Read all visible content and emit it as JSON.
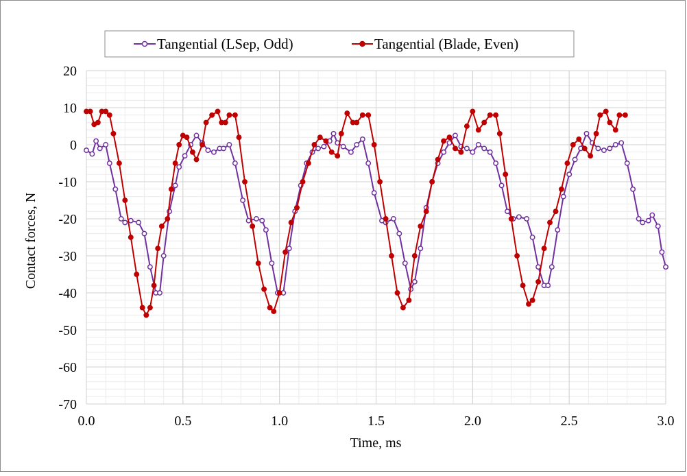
{
  "chart_data": {
    "type": "line",
    "title": "",
    "xlabel": "Time, ms",
    "ylabel": "Contact forces, N",
    "xlim": [
      0,
      3
    ],
    "ylim": [
      -70,
      20
    ],
    "x_ticks": [
      0,
      0.5,
      1,
      1.5,
      2,
      2.5,
      3
    ],
    "x_tick_labels": [
      "0.0",
      "0.5",
      "1.0",
      "1.5",
      "2.0",
      "2.5",
      "3.0"
    ],
    "y_ticks": [
      20,
      10,
      0,
      -10,
      -20,
      -30,
      -40,
      -50,
      -60,
      -70
    ],
    "y_tick_labels": [
      "20",
      "10",
      "0",
      "-10",
      "-20",
      "-30",
      "-40",
      "-50",
      "-60",
      "-70"
    ],
    "grid": true,
    "legend_position": "top",
    "series": [
      {
        "name": "Tangential (LSep, Odd)",
        "color": "#7030A0",
        "marker": "open-circle",
        "points": [
          [
            0.0,
            -1.5
          ],
          [
            0.03,
            -2.5
          ],
          [
            0.05,
            1.0
          ],
          [
            0.07,
            -1.0
          ],
          [
            0.1,
            0.0
          ],
          [
            0.12,
            -5
          ],
          [
            0.15,
            -12
          ],
          [
            0.18,
            -20
          ],
          [
            0.2,
            -21
          ],
          [
            0.23,
            -20.5
          ],
          [
            0.27,
            -21
          ],
          [
            0.3,
            -24
          ],
          [
            0.33,
            -33
          ],
          [
            0.36,
            -40
          ],
          [
            0.38,
            -40
          ],
          [
            0.4,
            -30
          ],
          [
            0.43,
            -18
          ],
          [
            0.46,
            -11
          ],
          [
            0.48,
            -6
          ],
          [
            0.51,
            -3
          ],
          [
            0.54,
            0
          ],
          [
            0.57,
            2.5
          ],
          [
            0.6,
            0.5
          ],
          [
            0.63,
            -1.5
          ],
          [
            0.66,
            -2
          ],
          [
            0.69,
            -1
          ],
          [
            0.71,
            -1
          ],
          [
            0.74,
            0
          ],
          [
            0.77,
            -5
          ],
          [
            0.81,
            -15
          ],
          [
            0.84,
            -20.5
          ],
          [
            0.88,
            -20
          ],
          [
            0.91,
            -20.5
          ],
          [
            0.93,
            -23
          ],
          [
            0.96,
            -32
          ],
          [
            0.99,
            -40
          ],
          [
            1.02,
            -40
          ],
          [
            1.05,
            -28
          ],
          [
            1.08,
            -18
          ],
          [
            1.11,
            -11
          ],
          [
            1.14,
            -5
          ],
          [
            1.17,
            -2
          ],
          [
            1.2,
            -1
          ],
          [
            1.23,
            -0.5
          ],
          [
            1.26,
            1
          ],
          [
            1.28,
            3
          ],
          [
            1.3,
            0.5
          ],
          [
            1.33,
            -0.5
          ],
          [
            1.37,
            -2
          ],
          [
            1.4,
            0
          ],
          [
            1.43,
            1.5
          ],
          [
            1.46,
            -5
          ],
          [
            1.49,
            -13
          ],
          [
            1.53,
            -20.5
          ],
          [
            1.55,
            -21
          ],
          [
            1.59,
            -20
          ],
          [
            1.62,
            -24
          ],
          [
            1.65,
            -32
          ],
          [
            1.68,
            -39
          ],
          [
            1.7,
            -37
          ],
          [
            1.73,
            -28
          ],
          [
            1.76,
            -17
          ],
          [
            1.79,
            -10
          ],
          [
            1.82,
            -5
          ],
          [
            1.85,
            -2
          ],
          [
            1.88,
            0.5
          ],
          [
            1.91,
            2.5
          ],
          [
            1.94,
            -0.5
          ],
          [
            1.97,
            -1
          ],
          [
            2.0,
            -2
          ],
          [
            2.03,
            0
          ],
          [
            2.06,
            -1
          ],
          [
            2.09,
            -2
          ],
          [
            2.12,
            -5
          ],
          [
            2.15,
            -11
          ],
          [
            2.18,
            -18
          ],
          [
            2.21,
            -20
          ],
          [
            2.24,
            -19.5
          ],
          [
            2.28,
            -20
          ],
          [
            2.31,
            -25
          ],
          [
            2.34,
            -33
          ],
          [
            2.37,
            -38
          ],
          [
            2.39,
            -38
          ],
          [
            2.41,
            -33
          ],
          [
            2.44,
            -23
          ],
          [
            2.47,
            -14
          ],
          [
            2.5,
            -8
          ],
          [
            2.53,
            -4
          ],
          [
            2.56,
            -1
          ],
          [
            2.59,
            3
          ],
          [
            2.62,
            0.5
          ],
          [
            2.65,
            -1
          ],
          [
            2.68,
            -1.5
          ],
          [
            2.71,
            -1
          ],
          [
            2.74,
            0
          ],
          [
            2.77,
            0.5
          ],
          [
            2.8,
            -5
          ],
          [
            2.83,
            -12
          ],
          [
            2.86,
            -20
          ],
          [
            2.88,
            -21
          ],
          [
            2.91,
            -20.5
          ],
          [
            2.93,
            -19
          ],
          [
            2.96,
            -22
          ],
          [
            2.98,
            -29
          ],
          [
            3.0,
            -33
          ]
        ]
      },
      {
        "name": "Tangential (Blade, Even)",
        "color": "#C00000",
        "marker": "filled-circle",
        "points": [
          [
            0.0,
            9
          ],
          [
            0.02,
            9
          ],
          [
            0.04,
            5.5
          ],
          [
            0.06,
            6
          ],
          [
            0.08,
            9
          ],
          [
            0.1,
            9
          ],
          [
            0.12,
            8
          ],
          [
            0.14,
            3
          ],
          [
            0.17,
            -5
          ],
          [
            0.2,
            -15
          ],
          [
            0.23,
            -25
          ],
          [
            0.26,
            -35
          ],
          [
            0.29,
            -44
          ],
          [
            0.31,
            -46
          ],
          [
            0.33,
            -44
          ],
          [
            0.35,
            -38
          ],
          [
            0.37,
            -28
          ],
          [
            0.39,
            -22
          ],
          [
            0.42,
            -20
          ],
          [
            0.44,
            -12
          ],
          [
            0.46,
            -5
          ],
          [
            0.48,
            0
          ],
          [
            0.5,
            2.5
          ],
          [
            0.52,
            2
          ],
          [
            0.55,
            -2
          ],
          [
            0.57,
            -4
          ],
          [
            0.6,
            0
          ],
          [
            0.62,
            6
          ],
          [
            0.65,
            8
          ],
          [
            0.68,
            9
          ],
          [
            0.7,
            6
          ],
          [
            0.72,
            6
          ],
          [
            0.74,
            8
          ],
          [
            0.77,
            8
          ],
          [
            0.79,
            2
          ],
          [
            0.82,
            -10
          ],
          [
            0.86,
            -22
          ],
          [
            0.89,
            -32
          ],
          [
            0.92,
            -39
          ],
          [
            0.95,
            -44
          ],
          [
            0.97,
            -45
          ],
          [
            1.0,
            -40
          ],
          [
            1.03,
            -29
          ],
          [
            1.06,
            -21
          ],
          [
            1.09,
            -17
          ],
          [
            1.12,
            -10
          ],
          [
            1.15,
            -5
          ],
          [
            1.18,
            0
          ],
          [
            1.21,
            2
          ],
          [
            1.24,
            1
          ],
          [
            1.27,
            -2
          ],
          [
            1.3,
            -3
          ],
          [
            1.32,
            3
          ],
          [
            1.35,
            8.5
          ],
          [
            1.38,
            6
          ],
          [
            1.4,
            6
          ],
          [
            1.43,
            8
          ],
          [
            1.46,
            8
          ],
          [
            1.49,
            0
          ],
          [
            1.52,
            -10
          ],
          [
            1.55,
            -20
          ],
          [
            1.58,
            -30
          ],
          [
            1.61,
            -40
          ],
          [
            1.64,
            -44
          ],
          [
            1.67,
            -42
          ],
          [
            1.7,
            -30
          ],
          [
            1.73,
            -22
          ],
          [
            1.76,
            -18
          ],
          [
            1.79,
            -10
          ],
          [
            1.82,
            -4
          ],
          [
            1.85,
            1
          ],
          [
            1.88,
            2
          ],
          [
            1.91,
            -1
          ],
          [
            1.94,
            -2
          ],
          [
            1.97,
            5
          ],
          [
            2.0,
            9
          ],
          [
            2.03,
            4
          ],
          [
            2.06,
            6
          ],
          [
            2.09,
            8
          ],
          [
            2.12,
            8
          ],
          [
            2.14,
            3
          ],
          [
            2.17,
            -8
          ],
          [
            2.2,
            -20
          ],
          [
            2.23,
            -30
          ],
          [
            2.26,
            -38
          ],
          [
            2.29,
            -43
          ],
          [
            2.31,
            -42
          ],
          [
            2.34,
            -37
          ],
          [
            2.37,
            -28
          ],
          [
            2.4,
            -21
          ],
          [
            2.43,
            -18
          ],
          [
            2.46,
            -12
          ],
          [
            2.49,
            -5
          ],
          [
            2.52,
            0
          ],
          [
            2.55,
            1.5
          ],
          [
            2.58,
            -1
          ],
          [
            2.61,
            -3
          ],
          [
            2.64,
            3
          ],
          [
            2.66,
            8
          ],
          [
            2.69,
            9
          ],
          [
            2.71,
            6
          ],
          [
            2.74,
            4
          ],
          [
            2.76,
            8
          ],
          [
            2.79,
            8
          ]
        ]
      }
    ]
  }
}
